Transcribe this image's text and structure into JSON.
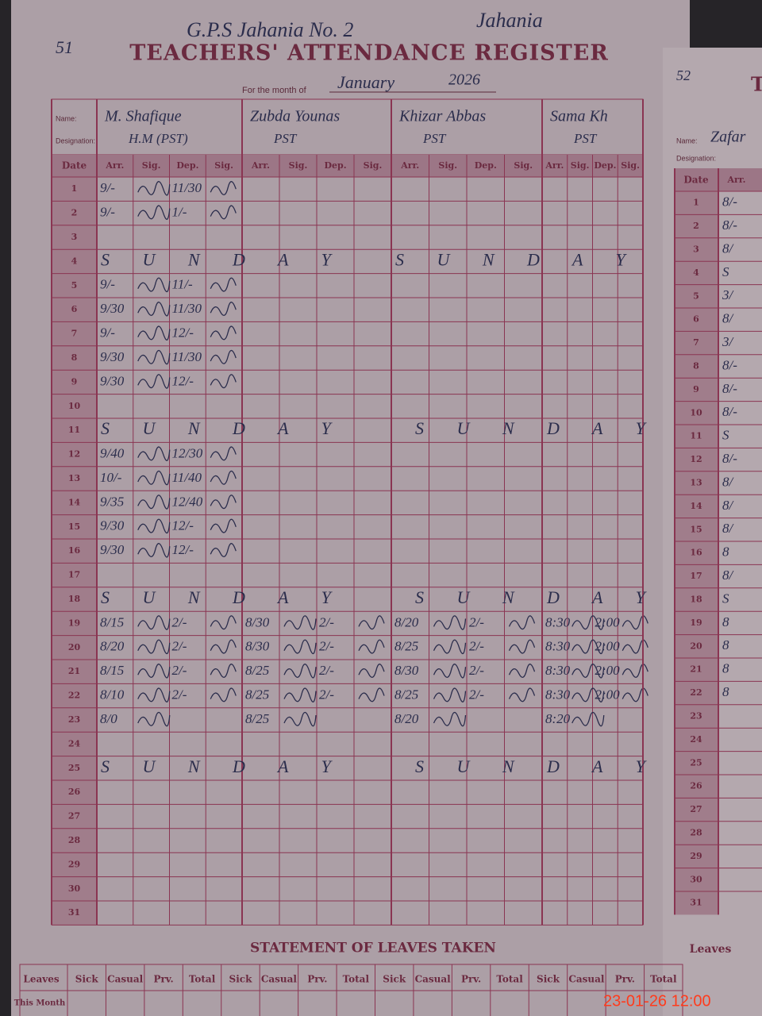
{
  "page_number": "51",
  "school": "G.P.S Jahania No. 2",
  "place": "Jahania",
  "title": "TEACHERS' ATTENDANCE REGISTER",
  "month_label": "For the month of",
  "month": "January",
  "year": "2026",
  "name_label": "Name:",
  "designation_label": "Designation:",
  "date_header": "Date",
  "column_headers": [
    "Arr.",
    "Sig.",
    "Dep.",
    "Sig."
  ],
  "dates": [
    "1",
    "2",
    "3",
    "4",
    "5",
    "6",
    "7",
    "8",
    "9",
    "10",
    "11",
    "12",
    "13",
    "14",
    "15",
    "16",
    "17",
    "18",
    "19",
    "20",
    "21",
    "22",
    "23",
    "24",
    "25",
    "26",
    "27",
    "28",
    "29",
    "30",
    "31"
  ],
  "teachers": [
    {
      "name": "M. Shafique",
      "designation": "H.M (PST)",
      "entries": [
        {
          "date": "1",
          "arr": "9/-",
          "dep": "11/30"
        },
        {
          "date": "2",
          "arr": "9/-",
          "dep": "1/-"
        },
        {
          "date": "5",
          "arr": "9/-",
          "dep": "11/-"
        },
        {
          "date": "6",
          "arr": "9/30",
          "dep": "11/30"
        },
        {
          "date": "7",
          "arr": "9/-",
          "dep": "12/-"
        },
        {
          "date": "8",
          "arr": "9/30",
          "dep": "11/30"
        },
        {
          "date": "9",
          "arr": "9/30",
          "dep": "12/-"
        },
        {
          "date": "12",
          "arr": "9/40",
          "dep": "12/30"
        },
        {
          "date": "13",
          "arr": "10/-",
          "dep": "11/40"
        },
        {
          "date": "14",
          "arr": "9/35",
          "dep": "12/40"
        },
        {
          "date": "15",
          "arr": "9/30",
          "dep": "12/-"
        },
        {
          "date": "16",
          "arr": "9/30",
          "dep": "12/-"
        },
        {
          "date": "19",
          "arr": "8/15",
          "dep": "2/-"
        },
        {
          "date": "20",
          "arr": "8/20",
          "dep": "2/-"
        },
        {
          "date": "21",
          "arr": "8/15",
          "dep": "2/-"
        },
        {
          "date": "22",
          "arr": "8/10",
          "dep": "2/-"
        },
        {
          "date": "23",
          "arr": "8/0"
        }
      ]
    },
    {
      "name": "Zubda Younas",
      "designation": "PST",
      "entries": [
        {
          "date": "19",
          "arr": "8/30",
          "dep": "2/-"
        },
        {
          "date": "20",
          "arr": "8/30",
          "dep": "2/-"
        },
        {
          "date": "21",
          "arr": "8/25",
          "dep": "2/-"
        },
        {
          "date": "22",
          "arr": "8/25",
          "dep": "2/-"
        },
        {
          "date": "23",
          "arr": "8/25"
        }
      ]
    },
    {
      "name": "Khizar Abbas",
      "designation": "PST",
      "entries": [
        {
          "date": "19",
          "arr": "8/20",
          "dep": "2/-"
        },
        {
          "date": "20",
          "arr": "8/25",
          "dep": "2/-"
        },
        {
          "date": "21",
          "arr": "8/30",
          "dep": "2/-"
        },
        {
          "date": "22",
          "arr": "8/25",
          "dep": "2/-"
        },
        {
          "date": "23",
          "arr": "8/20"
        }
      ]
    },
    {
      "name": "Sama Kh",
      "designation": "PST",
      "entries": [
        {
          "date": "19",
          "arr": "8:30",
          "dep": "2:00"
        },
        {
          "date": "20",
          "arr": "8:30",
          "dep": "2:00"
        },
        {
          "date": "21",
          "arr": "8:30",
          "dep": "2:00"
        },
        {
          "date": "22",
          "arr": "8:30",
          "dep": "2:00"
        },
        {
          "date": "23",
          "arr": "8:20"
        }
      ]
    }
  ],
  "sundays": [
    {
      "date": "4",
      "marks": [
        "S U N D A Y",
        "S U N D A Y"
      ]
    },
    {
      "date": "11",
      "marks": [
        "S U N D A Y",
        "S U N D A Y"
      ]
    },
    {
      "date": "18",
      "marks": [
        "S U N D A Y",
        "S U N D A Y"
      ]
    },
    {
      "date": "25",
      "marks": [
        "S U N D A Y",
        "S U N D A Y"
      ]
    }
  ],
  "leaves": {
    "title": "STATEMENT OF LEAVES TAKEN",
    "row_header": "Leaves",
    "headers": [
      "Sick",
      "Casual",
      "Prv.",
      "Total"
    ],
    "row": "This Month"
  },
  "next_page": {
    "page_number": "52",
    "title": "T",
    "name": "Zafar",
    "arr": [
      "8/-",
      "8/-",
      "8/",
      "S",
      "3/",
      "8/",
      "3/",
      "8/-",
      "8/-",
      "8/-",
      "S",
      "8/-",
      "8/",
      "8/",
      "8/",
      "8",
      "8/",
      "S",
      "8",
      "8",
      "8",
      "8"
    ]
  },
  "timestamp": "23-01-26 12:00"
}
